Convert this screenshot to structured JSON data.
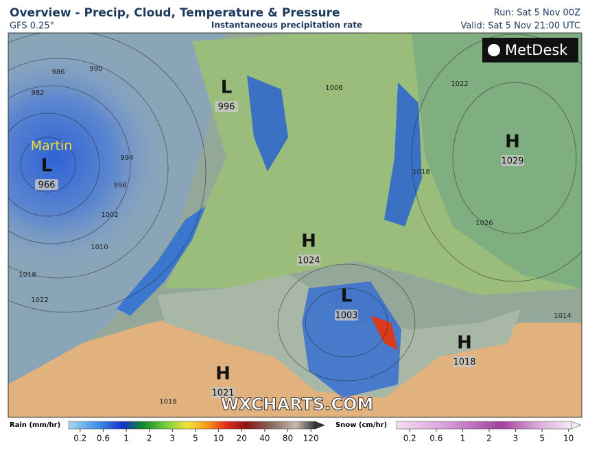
{
  "header": {
    "title": "Overview - Precip, Cloud, Temperature & Pressure",
    "model": "GFS 0.25°",
    "subtitle": "Instantaneous precipitation rate",
    "run": "Run: Sat 5 Nov 00Z",
    "valid": "Valid: Sat 5 Nov 21:00 UTC"
  },
  "logo": "MetDesk",
  "watermark": "WXCHARTS.COM",
  "storm_name": "Martin",
  "systems": [
    {
      "kind": "L",
      "pressure": "996"
    },
    {
      "kind": "L",
      "pressure": "966"
    },
    {
      "kind": "H",
      "pressure": "1029"
    },
    {
      "kind": "H",
      "pressure": "1024"
    },
    {
      "kind": "L",
      "pressure": "1003"
    },
    {
      "kind": "H",
      "pressure": "1018"
    },
    {
      "kind": "H",
      "pressure": "1021"
    }
  ],
  "isobar_labels": [
    "986",
    "990",
    "982",
    "994",
    "998",
    "1002",
    "1010",
    "1018",
    "1022",
    "1006",
    "1022",
    "1018",
    "1026",
    "1014",
    "1018"
  ],
  "legends": {
    "rain": {
      "title": "Rain (mm/hr)",
      "ticks": [
        "0.2",
        "0.6",
        "1",
        "2",
        "3",
        "5",
        "10",
        "20",
        "40",
        "80",
        "120"
      ]
    },
    "snow": {
      "title": "Snow (cm/hr)",
      "ticks": [
        "0.2",
        "0.6",
        "1",
        "2",
        "3",
        "5",
        "10"
      ]
    }
  }
}
